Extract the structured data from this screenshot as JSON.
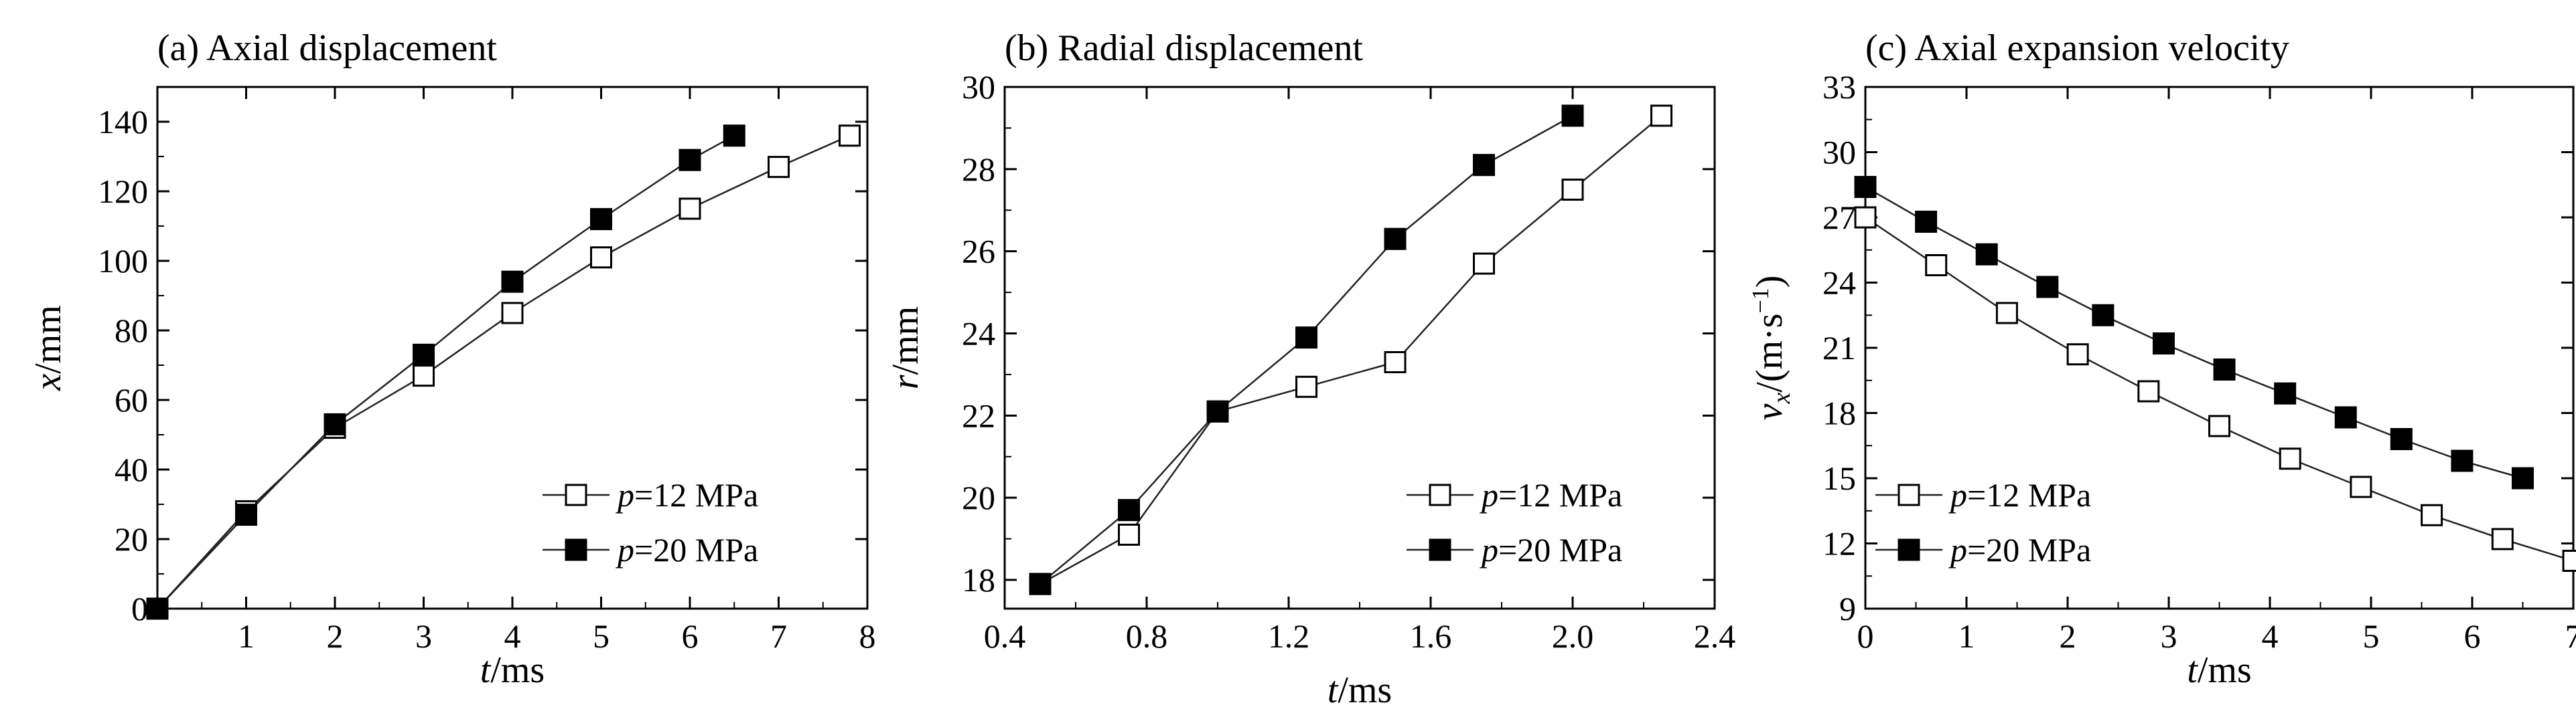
{
  "colors": {
    "axis": "#000000",
    "line": "#222222",
    "open_marker_fill": "#ffffff",
    "filled_marker_fill": "#000000"
  },
  "chart_data": [
    {
      "type": "line",
      "title": "(a) Axial displacement",
      "xlabel": {
        "symbol": "t",
        "unit": "/ms"
      },
      "ylabel": {
        "symbol": "x",
        "unit": "/mm"
      },
      "xlim": [
        0,
        8
      ],
      "ylim": [
        0,
        150
      ],
      "xticks": [
        1,
        2,
        3,
        4,
        5,
        6,
        7,
        8
      ],
      "yticks": [
        0,
        20,
        40,
        60,
        80,
        100,
        120,
        140
      ],
      "grid": false,
      "legend_position": "bottom-right",
      "series": [
        {
          "name": "=12 MPa",
          "name_symbol": "p",
          "marker": "open-square",
          "x": [
            0,
            1,
            2,
            3,
            4,
            5,
            6,
            7,
            7.8
          ],
          "y": [
            0,
            28,
            52,
            67,
            85,
            101,
            115,
            127,
            136
          ]
        },
        {
          "name": "=20 MPa",
          "name_symbol": "p",
          "marker": "filled-square",
          "x": [
            0,
            1,
            2,
            3,
            4,
            5,
            6,
            6.5
          ],
          "y": [
            0,
            27,
            53,
            73,
            94,
            112,
            129,
            136
          ]
        }
      ]
    },
    {
      "type": "line",
      "title": "(b) Radial displacement",
      "xlabel": {
        "symbol": "t",
        "unit": "/ms"
      },
      "ylabel": {
        "symbol": "r",
        "unit": "/mm"
      },
      "xlim": [
        0.4,
        2.4
      ],
      "ylim": [
        17.3,
        30
      ],
      "xticks": [
        0.4,
        0.8,
        1.2,
        1.6,
        2.0,
        2.4
      ],
      "xtick_labels": [
        "0.4",
        "0.8",
        "1.2",
        "1.6",
        "2.0",
        "2.4"
      ],
      "yticks": [
        18,
        20,
        22,
        24,
        26,
        28,
        30
      ],
      "grid": false,
      "legend_position": "bottom-right",
      "series": [
        {
          "name": "=12 MPa",
          "name_symbol": "p",
          "marker": "open-square",
          "x": [
            0.5,
            0.75,
            1.0,
            1.25,
            1.5,
            1.75,
            2.0,
            2.25
          ],
          "y": [
            17.9,
            19.1,
            22.1,
            22.7,
            23.3,
            25.7,
            27.5,
            29.3
          ]
        },
        {
          "name": "=20 MPa",
          "name_symbol": "p",
          "marker": "filled-square",
          "x": [
            0.5,
            0.75,
            1.0,
            1.25,
            1.5,
            1.75,
            2.0
          ],
          "y": [
            17.9,
            19.7,
            22.1,
            23.9,
            26.3,
            28.1,
            29.3
          ]
        }
      ]
    },
    {
      "type": "line",
      "title": "(c) Axial expansion velocity",
      "xlabel": {
        "symbol": "t",
        "unit": "/ms"
      },
      "ylabel": {
        "symbol": "v",
        "subscript": "x",
        "unit": "/(m·s",
        "unit_sup": "−1",
        "unit_end": ")"
      },
      "xlim": [
        0,
        7
      ],
      "ylim": [
        9,
        33
      ],
      "xticks": [
        0,
        1,
        2,
        3,
        4,
        5,
        6,
        7
      ],
      "yticks": [
        9,
        12,
        15,
        18,
        21,
        24,
        27,
        30,
        33
      ],
      "grid": false,
      "legend_position": "bottom-left",
      "series": [
        {
          "name": "=12 MPa",
          "name_symbol": "p",
          "marker": "open-square",
          "x": [
            0,
            0.7,
            1.4,
            2.1,
            2.8,
            3.5,
            4.2,
            4.9,
            5.6,
            6.3,
            7.0
          ],
          "y": [
            27.0,
            24.8,
            22.6,
            20.7,
            19.0,
            17.4,
            15.9,
            14.6,
            13.3,
            12.2,
            11.2
          ]
        },
        {
          "name": "=20 MPa",
          "name_symbol": "p",
          "marker": "filled-square",
          "x": [
            0,
            0.6,
            1.2,
            1.8,
            2.35,
            2.95,
            3.55,
            4.15,
            4.75,
            5.3,
            5.9,
            6.5
          ],
          "y": [
            28.4,
            26.8,
            25.3,
            23.8,
            22.5,
            21.2,
            20.0,
            18.9,
            17.8,
            16.8,
            15.8,
            15.0
          ]
        }
      ]
    }
  ]
}
